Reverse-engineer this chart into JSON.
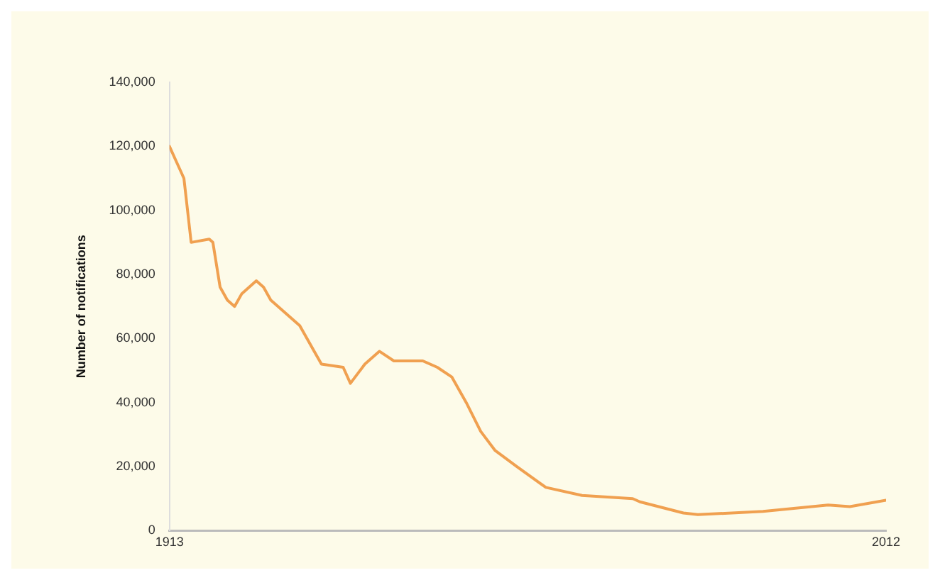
{
  "chart_data": {
    "type": "line",
    "ylabel": "Number of notifications",
    "x": [
      1913,
      1915,
      1916,
      1918.5,
      1919,
      1920,
      1921,
      1922,
      1923,
      1925,
      1926,
      1927,
      1929,
      1931,
      1933,
      1934,
      1937,
      1938,
      1940,
      1942,
      1944,
      1948,
      1950,
      1952,
      1954,
      1956,
      1958,
      1961,
      1965,
      1970,
      1977,
      1978,
      1984,
      1986,
      1995,
      2004,
      2007,
      2012
    ],
    "series": [
      {
        "color": "#f0a050",
        "values": [
          120000,
          110000,
          90000,
          91000,
          90000,
          76000,
          72000,
          70000,
          74000,
          78000,
          76000,
          72000,
          68000,
          64000,
          56000,
          52000,
          51000,
          46000,
          52000,
          56000,
          53000,
          53000,
          51000,
          48000,
          40000,
          31000,
          25000,
          20000,
          13500,
          11000,
          10000,
          9000,
          5500,
          5000,
          6000,
          8000,
          7500,
          9500
        ]
      }
    ],
    "xlim": [
      1913,
      2012
    ],
    "xticks": [
      1913,
      2012
    ],
    "ylim": [
      0,
      140000
    ],
    "yticks": [
      {
        "value": 0,
        "label": "0"
      },
      {
        "value": 20000,
        "label": "20,000"
      },
      {
        "value": 40000,
        "label": "40,000"
      },
      {
        "value": 60000,
        "label": "60,000"
      },
      {
        "value": 80000,
        "label": "80,000"
      },
      {
        "value": 100000,
        "label": "100,000"
      },
      {
        "value": 120000,
        "label": "120,000"
      },
      {
        "value": 140000,
        "label": "140,000"
      }
    ],
    "grid": false,
    "legend": false,
    "marker": "none",
    "line_style": "solid"
  }
}
